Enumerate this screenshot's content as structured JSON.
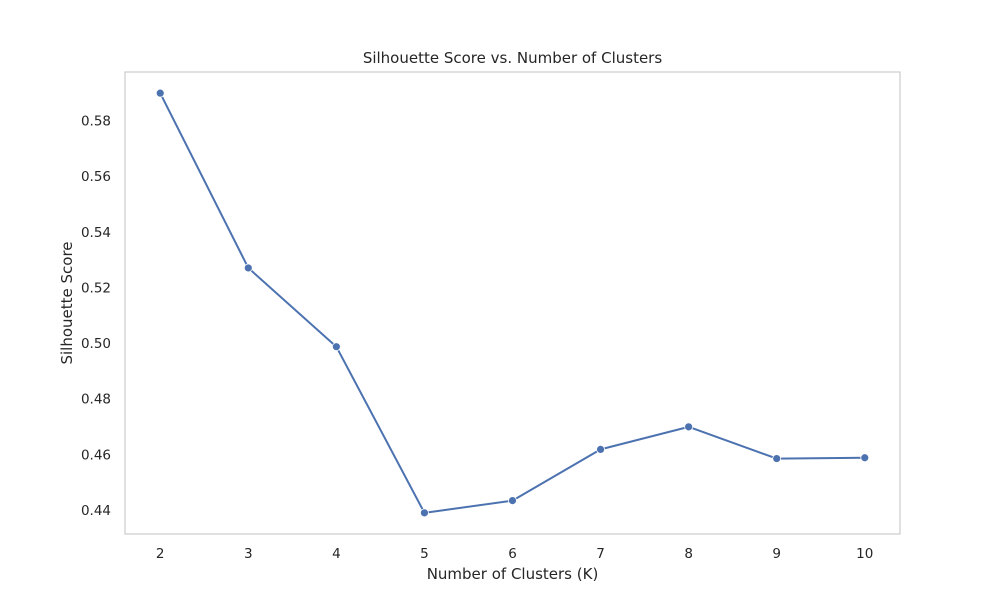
{
  "chart_data": {
    "type": "line",
    "title": "Silhouette Score vs. Number of Clusters",
    "xlabel": "Number of Clusters (K)",
    "ylabel": "Silhouette Score",
    "x": [
      2,
      3,
      4,
      5,
      6,
      7,
      8,
      9,
      10
    ],
    "series": [
      {
        "values": [
          0.5898,
          0.527,
          0.4987,
          0.439,
          0.4434,
          0.4618,
          0.4699,
          0.4585,
          0.4588
        ],
        "color": "#4c72b0",
        "marker": "circle"
      }
    ],
    "xticks": [
      "2",
      "3",
      "4",
      "5",
      "6",
      "7",
      "8",
      "9",
      "10"
    ],
    "yticks": [
      "0.44",
      "0.46",
      "0.48",
      "0.50",
      "0.52",
      "0.54",
      "0.56",
      "0.58"
    ],
    "ytick_values": [
      0.44,
      0.46,
      0.48,
      0.5,
      0.52,
      0.54,
      0.56,
      0.58
    ],
    "xlim": [
      1.6,
      10.4
    ],
    "ylim": [
      0.4314,
      0.5974
    ],
    "grid": false,
    "legend": "none",
    "frame_color": "#cccccc"
  }
}
